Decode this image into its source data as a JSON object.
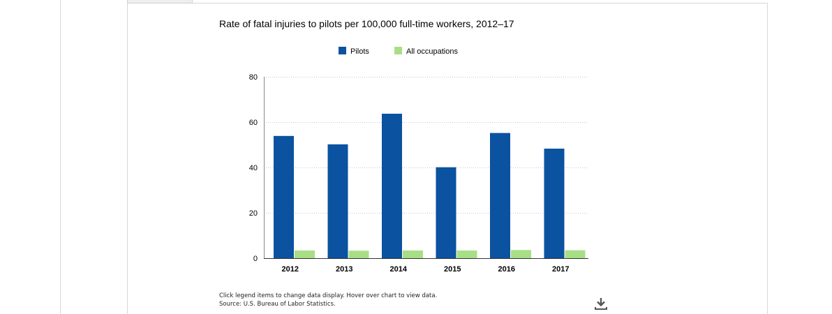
{
  "chart_data": {
    "type": "bar",
    "title": "Rate of fatal injuries to pilots per 100,000 full-time workers, 2012–17",
    "categories": [
      "2012",
      "2013",
      "2014",
      "2015",
      "2016",
      "2017"
    ],
    "series": [
      {
        "name": "Pilots",
        "color": "#0b52a0",
        "values": [
          53.9,
          50.2,
          63.7,
          40.1,
          55.2,
          48.3
        ]
      },
      {
        "name": "All occupations",
        "color": "#a8df86",
        "values": [
          3.4,
          3.3,
          3.4,
          3.4,
          3.6,
          3.5
        ]
      }
    ],
    "ylim": [
      0,
      80
    ],
    "yticks": [
      0,
      20,
      40,
      60,
      80
    ],
    "grid": true,
    "legend_position": "top-center",
    "xlabel": "",
    "ylabel": ""
  },
  "footer": {
    "instructions": "Click legend items to change data display. Hover over chart to view data.",
    "source": "Source: U.S. Bureau of Labor Statistics."
  },
  "icons": {
    "download": "download-icon"
  }
}
